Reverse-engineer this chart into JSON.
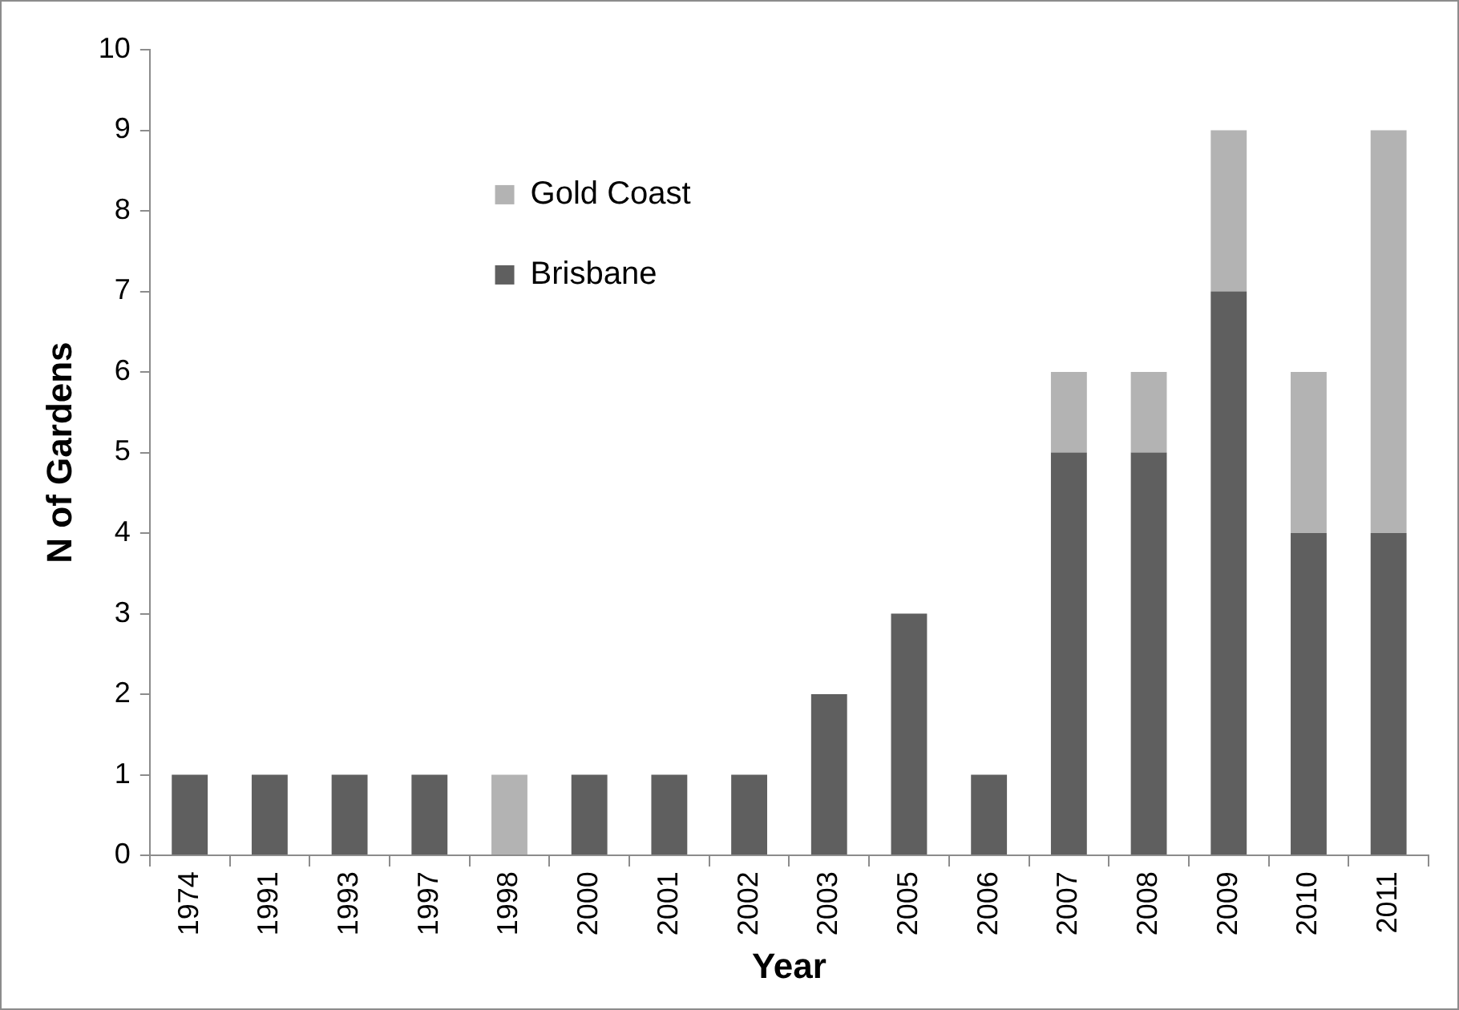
{
  "chart_data": {
    "type": "bar",
    "xlabel": "Year",
    "ylabel": "N of Gardens",
    "stacked": true,
    "legend": "top left",
    "grid": false,
    "categories": [
      "1974",
      "1991",
      "1993",
      "1997",
      "1998",
      "2000",
      "2001",
      "2002",
      "2003",
      "2005",
      "2006",
      "2007",
      "2008",
      "2009",
      "2010",
      "2011"
    ],
    "series": [
      {
        "name": "Brisbane",
        "color": "#5f5f5f",
        "values": [
          1,
          1,
          1,
          1,
          0,
          1,
          1,
          1,
          2,
          3,
          1,
          5,
          5,
          7,
          4,
          4
        ]
      },
      {
        "name": "Gold Coast",
        "color": "#b3b3b3",
        "values": [
          0,
          0,
          0,
          0,
          1,
          0,
          0,
          0,
          0,
          0,
          0,
          1,
          1,
          2,
          2,
          5
        ]
      }
    ],
    "ylim": [
      0,
      10
    ],
    "yticks": [
      0,
      1,
      2,
      3,
      4,
      5,
      6,
      7,
      8,
      9,
      10
    ]
  }
}
